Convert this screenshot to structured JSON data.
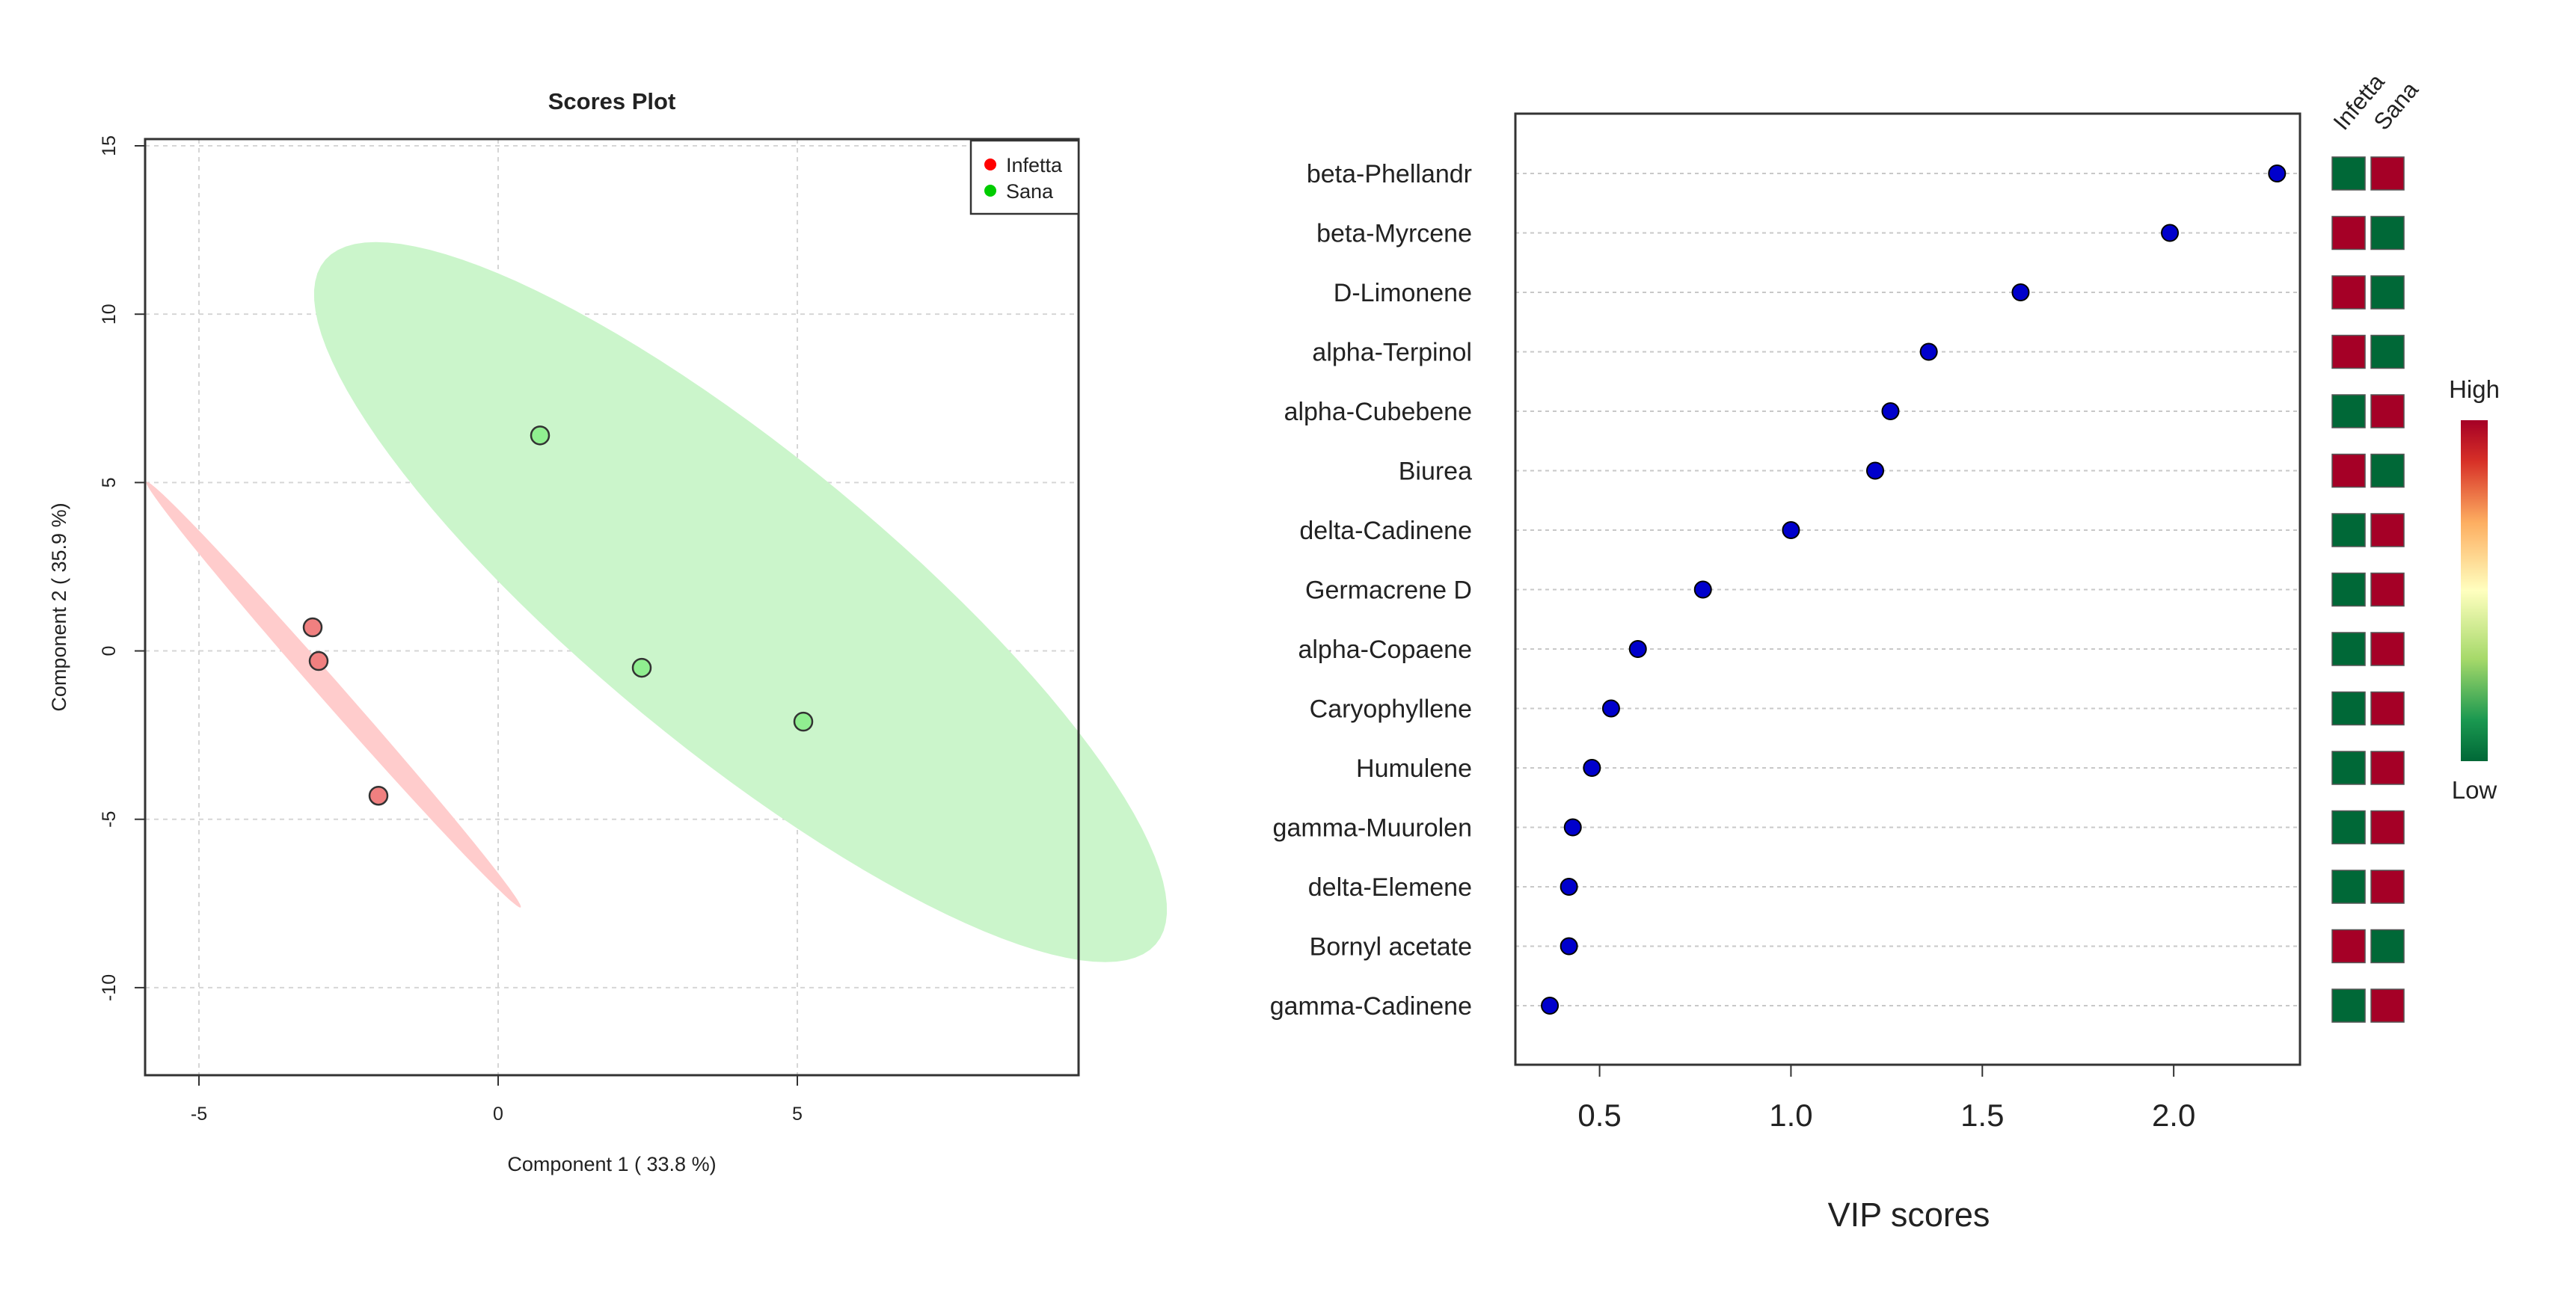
{
  "chart_data": [
    {
      "type": "scatter",
      "title": "Scores Plot",
      "xlabel": "Component 1 ( 33.8 %)",
      "ylabel": "Component 2 ( 35.9 %)",
      "xlim": [
        -5.9,
        9.7
      ],
      "ylim": [
        -12.6,
        15.2
      ],
      "xticks": [
        -5,
        0,
        5
      ],
      "yticks": [
        -10,
        -5,
        0,
        5,
        10,
        15
      ],
      "grid": true,
      "legend_position": "top-right",
      "series": [
        {
          "name": "Infetta",
          "color": "#ff0000",
          "point_fill": "#f08080",
          "points": [
            [
              -3.1,
              0.7
            ],
            [
              -3.0,
              -0.3
            ],
            [
              -2.0,
              -4.3
            ]
          ],
          "ellipse": {
            "center": [
              -2.75,
              -1.3
            ],
            "semi_axes": [
              7.05,
              0.22
            ],
            "angle_deg": -63.7,
            "fill": "#ffcccc"
          }
        },
        {
          "name": "Sana",
          "color": "#00cc00",
          "point_fill": "#90ee90",
          "points": [
            [
              0.7,
              6.4
            ],
            [
              2.4,
              -0.5
            ],
            [
              5.1,
              -2.1
            ]
          ],
          "ellipse": {
            "center": [
              4.05,
              1.45
            ],
            "semi_axes": [
              12.45,
              3.18
            ],
            "angle_deg": -58,
            "fill": "#cbf5cb"
          }
        }
      ]
    },
    {
      "type": "scatter",
      "subtype": "vip-dotplot",
      "xlabel": "VIP scores",
      "xlim": [
        0.28,
        2.33
      ],
      "xticks": [
        "0.5",
        "1.0",
        "1.5",
        "2.0"
      ],
      "grid": true,
      "heatmap_columns": [
        "Infetta",
        "Sana"
      ],
      "heatmap_legend": {
        "high": "High",
        "low": "Low",
        "high_color": "#a50026",
        "low_color": "#006837"
      },
      "features": [
        "beta-Phellandr",
        "beta-Myrcene",
        "D-Limonene",
        "alpha-Terpinol",
        "alpha-Cubebene",
        "Biurea",
        "delta-Cadinene",
        "Germacrene D",
        "alpha-Copaene",
        "Caryophyllene",
        "Humulene",
        "gamma-Muurolen",
        "delta-Elemene",
        "Bornyl acetate",
        "gamma-Cadinene"
      ],
      "values": [
        2.27,
        1.99,
        1.6,
        1.36,
        1.26,
        1.22,
        1.0,
        0.77,
        0.6,
        0.53,
        0.48,
        0.43,
        0.42,
        0.42,
        0.37
      ],
      "heatmap": [
        [
          "low",
          "high"
        ],
        [
          "high",
          "low"
        ],
        [
          "high",
          "low"
        ],
        [
          "high",
          "low"
        ],
        [
          "low",
          "high"
        ],
        [
          "high",
          "low"
        ],
        [
          "low",
          "high"
        ],
        [
          "low",
          "high"
        ],
        [
          "low",
          "high"
        ],
        [
          "low",
          "high"
        ],
        [
          "low",
          "high"
        ],
        [
          "low",
          "high"
        ],
        [
          "low",
          "high"
        ],
        [
          "high",
          "low"
        ],
        [
          "low",
          "high"
        ]
      ],
      "point_color": "#0000cc"
    }
  ]
}
